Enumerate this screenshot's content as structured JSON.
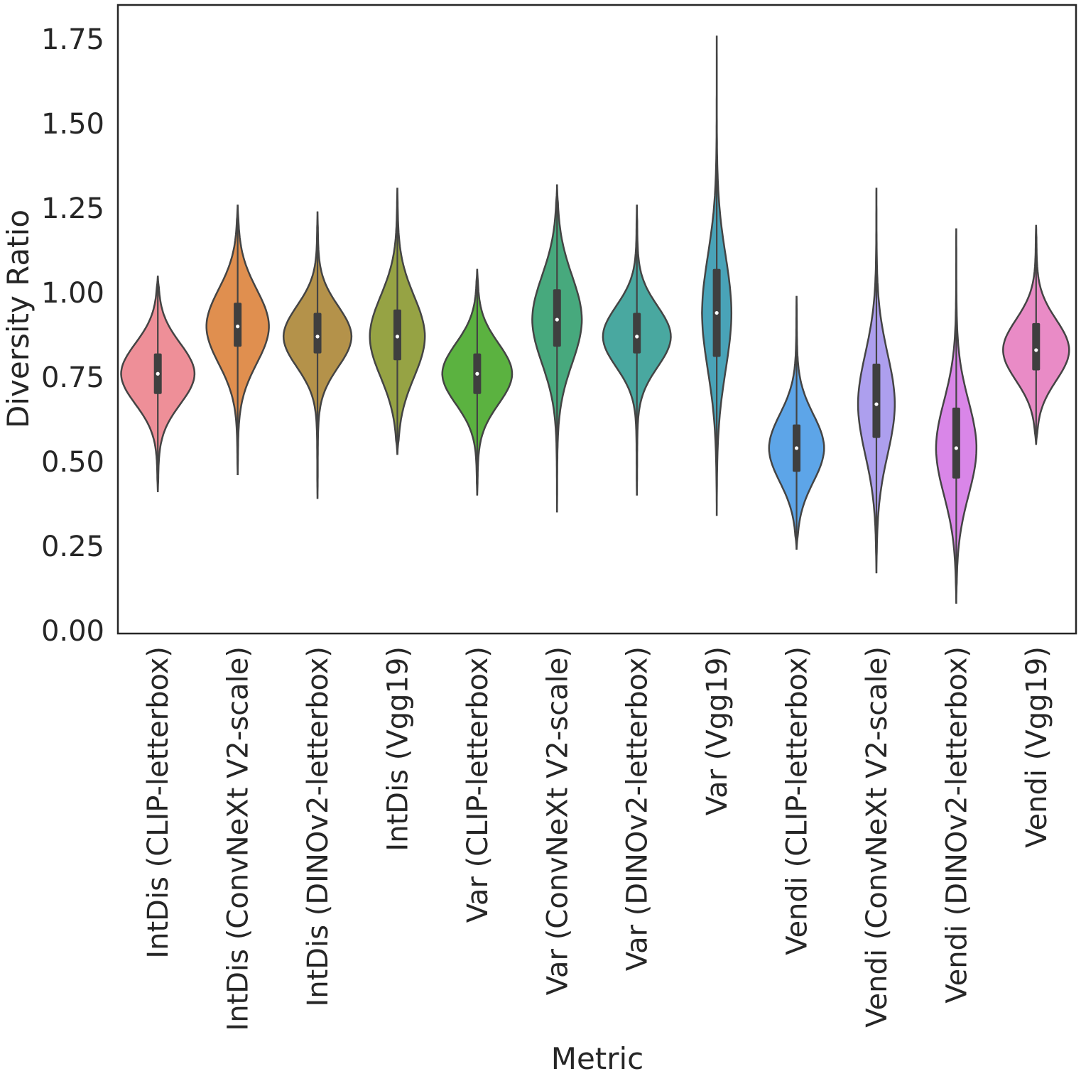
{
  "chart_data": {
    "type": "violin",
    "xlabel": "Metric",
    "ylabel": "Diversity Ratio",
    "ylim": [
      0.0,
      1.85
    ],
    "yticks": [
      "0.00",
      "0.25",
      "0.50",
      "0.75",
      "1.00",
      "1.25",
      "1.50",
      "1.75"
    ],
    "series": [
      {
        "name": "IntDis (CLIP-letterbox)",
        "color": "#ee8f98",
        "min": 0.41,
        "max": 1.05,
        "q1": 0.7,
        "median": 0.76,
        "q3": 0.82,
        "whisker_low": 0.53,
        "whisker_high": 0.96,
        "peaks": [
          {
            "y": 0.76,
            "w": 0.4,
            "s": 0.09
          }
        ]
      },
      {
        "name": "IntDis (ConvNeXt V2-scale)",
        "color": "#e08f4f",
        "min": 0.46,
        "max": 1.26,
        "q1": 0.84,
        "median": 0.9,
        "q3": 0.97,
        "whisker_low": 0.65,
        "whisker_high": 1.15,
        "peaks": [
          {
            "y": 0.9,
            "w": 0.34,
            "s": 0.11
          }
        ]
      },
      {
        "name": "IntDis (DINOv2-letterbox)",
        "color": "#b4924a",
        "min": 0.39,
        "max": 1.24,
        "q1": 0.82,
        "median": 0.87,
        "q3": 0.94,
        "whisker_low": 0.62,
        "whisker_high": 1.1,
        "peaks": [
          {
            "y": 0.87,
            "w": 0.37,
            "s": 0.09
          }
        ]
      },
      {
        "name": "IntDis (Vgg19)",
        "color": "#96a344",
        "min": 0.52,
        "max": 1.31,
        "q1": 0.8,
        "median": 0.87,
        "q3": 0.95,
        "whisker_low": 0.6,
        "whisker_high": 1.16,
        "peaks": [
          {
            "y": 0.87,
            "w": 0.3,
            "s": 0.12
          }
        ]
      },
      {
        "name": "Var (CLIP-letterbox)",
        "color": "#5bb240",
        "min": 0.4,
        "max": 1.07,
        "q1": 0.7,
        "median": 0.76,
        "q3": 0.82,
        "whisker_low": 0.53,
        "whisker_high": 0.98,
        "peaks": [
          {
            "y": 0.76,
            "w": 0.38,
            "s": 0.09
          }
        ]
      },
      {
        "name": "Var (ConvNeXt V2-scale)",
        "color": "#47a97d",
        "min": 0.35,
        "max": 1.32,
        "q1": 0.84,
        "median": 0.92,
        "q3": 1.01,
        "whisker_low": 0.58,
        "whisker_high": 1.23,
        "peaks": [
          {
            "y": 0.92,
            "w": 0.27,
            "s": 0.13
          }
        ]
      },
      {
        "name": "Var (DINOv2-letterbox)",
        "color": "#49a8a0",
        "min": 0.4,
        "max": 1.26,
        "q1": 0.82,
        "median": 0.87,
        "q3": 0.94,
        "whisker_low": 0.63,
        "whisker_high": 1.12,
        "peaks": [
          {
            "y": 0.87,
            "w": 0.37,
            "s": 0.09
          }
        ]
      },
      {
        "name": "Var (Vgg19)",
        "color": "#49a3b8",
        "min": 0.34,
        "max": 1.76,
        "q1": 0.81,
        "median": 0.94,
        "q3": 1.07,
        "whisker_low": 0.55,
        "whisker_high": 1.36,
        "peaks": [
          {
            "y": 0.94,
            "w": 0.16,
            "s": 0.17
          }
        ]
      },
      {
        "name": "Vendi (CLIP-letterbox)",
        "color": "#5da5e8",
        "min": 0.24,
        "max": 0.99,
        "q1": 0.47,
        "median": 0.54,
        "q3": 0.61,
        "whisker_low": 0.29,
        "whisker_high": 0.8,
        "peaks": [
          {
            "y": 0.54,
            "w": 0.3,
            "s": 0.1
          }
        ]
      },
      {
        "name": "Vendi (ConvNeXt V2-scale)",
        "color": "#ad9fee",
        "min": 0.17,
        "max": 1.31,
        "q1": 0.57,
        "median": 0.67,
        "q3": 0.79,
        "whisker_low": 0.35,
        "whisker_high": 1.06,
        "peaks": [
          {
            "y": 0.67,
            "w": 0.2,
            "s": 0.15
          }
        ]
      },
      {
        "name": "Vendi (DINOv2-letterbox)",
        "color": "#d986e8",
        "min": 0.08,
        "max": 1.19,
        "q1": 0.45,
        "median": 0.54,
        "q3": 0.66,
        "whisker_low": 0.22,
        "whisker_high": 0.98,
        "peaks": [
          {
            "y": 0.54,
            "w": 0.22,
            "s": 0.14
          }
        ]
      },
      {
        "name": "Vendi (Vgg19)",
        "color": "#e98bc6",
        "min": 0.55,
        "max": 1.2,
        "q1": 0.77,
        "median": 0.83,
        "q3": 0.91,
        "whisker_low": 0.62,
        "whisker_high": 1.1,
        "peaks": [
          {
            "y": 0.83,
            "w": 0.36,
            "s": 0.09
          }
        ]
      }
    ]
  }
}
